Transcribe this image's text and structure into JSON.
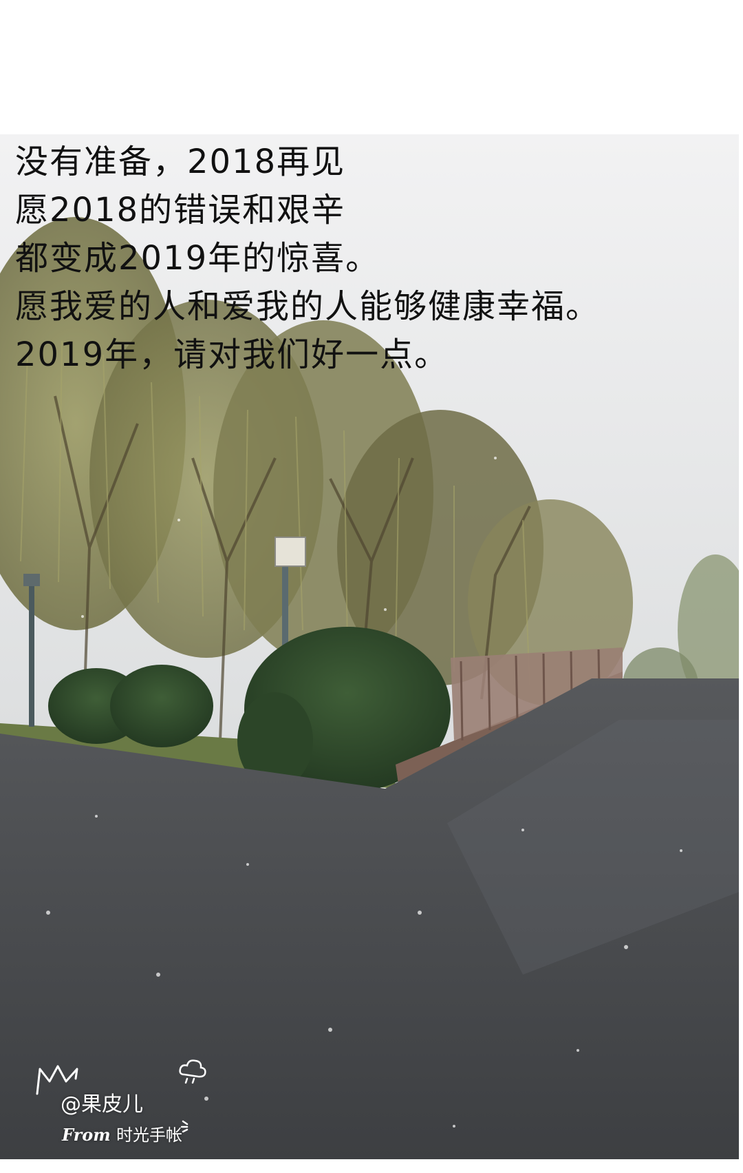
{
  "caption": {
    "lines": [
      "没有准备，2018再见",
      "愿2018的错误和艰辛",
      "都变成2019年的惊喜。",
      "愿我爱的人和爱我的人能够健康幸福。",
      "2019年，请对我们好一点。"
    ]
  },
  "photo": {
    "scene": "snowy-park-road-with-willow-trees-and-bridge",
    "sky_color": "#e8e9ea",
    "road_color": "#4a4c50",
    "tree_color": "#8a8a55",
    "bush_color": "#2e4a2a",
    "rail_color": "#8a6e62"
  },
  "watermark": {
    "user": "@果皮儿",
    "from_label": "From",
    "app_name": "时光手帐",
    "icons": [
      "crown-icon",
      "cloud-icon",
      "sparkle-icon"
    ]
  }
}
